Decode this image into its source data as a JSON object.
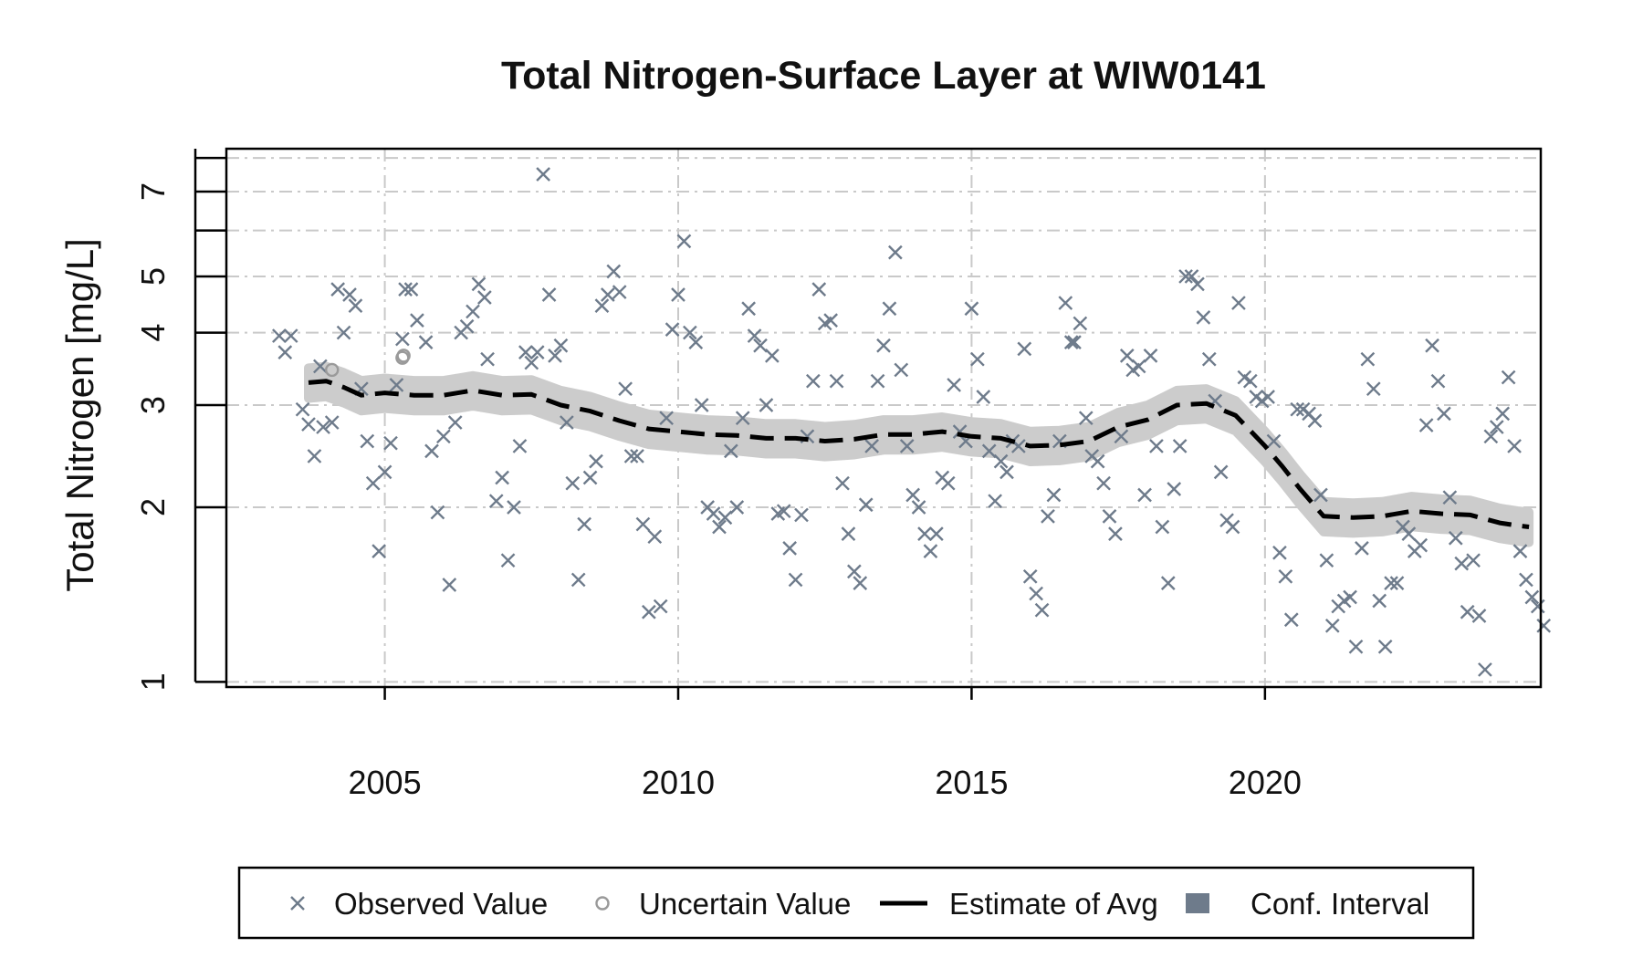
{
  "chart_data": {
    "type": "scatter",
    "title": "Total Nitrogen-Surface Layer at WIW0141",
    "ylabel": "Total Nitrogen [mg/L]",
    "xlabel": "",
    "y_scale": "log",
    "xlim": [
      2002.3,
      2024.7
    ],
    "ylim": [
      0.98,
      8.3
    ],
    "x_ticks": [
      2005,
      2010,
      2015,
      2020
    ],
    "x_tick_labels": [
      "2005",
      "2010",
      "2015",
      "2020"
    ],
    "y_ticks": [
      1,
      2,
      3,
      4,
      5,
      7
    ],
    "y_tick_labels": [
      "1",
      "2",
      "3",
      "4",
      "5",
      "7"
    ],
    "y_minor_ticks": [
      6,
      8
    ],
    "grid": true,
    "colors": {
      "observed": "#6e7b8b",
      "uncertain": "#9a9a9a",
      "estimate": "#000000",
      "conf_band": "#cccccc",
      "conf_legend": "#6e7b8b",
      "grid": "#c9c9c9"
    },
    "legend": {
      "placement": "bottom",
      "items": [
        {
          "label": "Observed Value",
          "symbol": "x"
        },
        {
          "label": "Uncertain Value",
          "symbol": "circle"
        },
        {
          "label": "Estimate of Avg",
          "symbol": "dashed-line"
        },
        {
          "label": "Conf. Interval",
          "symbol": "square"
        }
      ]
    },
    "series": [
      {
        "name": "Observed Value",
        "points": [
          [
            2003.2,
            3.95
          ],
          [
            2003.3,
            3.7
          ],
          [
            2003.4,
            3.95
          ],
          [
            2003.6,
            2.95
          ],
          [
            2003.7,
            2.78
          ],
          [
            2003.8,
            2.45
          ],
          [
            2003.9,
            3.5
          ],
          [
            2003.95,
            2.75
          ],
          [
            2004.1,
            2.8
          ],
          [
            2004.2,
            4.75
          ],
          [
            2004.3,
            4.0
          ],
          [
            2004.4,
            4.65
          ],
          [
            2004.5,
            4.45
          ],
          [
            2004.6,
            3.2
          ],
          [
            2004.7,
            2.6
          ],
          [
            2004.8,
            2.2
          ],
          [
            2004.9,
            1.68
          ],
          [
            2005.0,
            2.3
          ],
          [
            2005.1,
            2.58
          ],
          [
            2005.2,
            3.25
          ],
          [
            2005.3,
            3.9
          ],
          [
            2005.35,
            4.75
          ],
          [
            2005.45,
            4.75
          ],
          [
            2005.55,
            4.2
          ],
          [
            2005.7,
            3.85
          ],
          [
            2005.8,
            2.5
          ],
          [
            2005.9,
            1.96
          ],
          [
            2006.0,
            2.65
          ],
          [
            2006.1,
            1.47
          ],
          [
            2006.2,
            2.8
          ],
          [
            2006.3,
            4.0
          ],
          [
            2006.4,
            4.1
          ],
          [
            2006.5,
            4.35
          ],
          [
            2006.6,
            4.85
          ],
          [
            2006.7,
            4.6
          ],
          [
            2006.75,
            3.6
          ],
          [
            2006.9,
            2.05
          ],
          [
            2007.0,
            2.25
          ],
          [
            2007.1,
            1.62
          ],
          [
            2007.2,
            2.0
          ],
          [
            2007.3,
            2.55
          ],
          [
            2007.4,
            3.7
          ],
          [
            2007.5,
            3.55
          ],
          [
            2007.6,
            3.7
          ],
          [
            2007.7,
            7.5
          ],
          [
            2007.8,
            4.65
          ],
          [
            2007.9,
            3.65
          ],
          [
            2008.0,
            3.8
          ],
          [
            2008.1,
            2.8
          ],
          [
            2008.2,
            2.2
          ],
          [
            2008.3,
            1.5
          ],
          [
            2008.4,
            1.87
          ],
          [
            2008.5,
            2.25
          ],
          [
            2008.6,
            2.4
          ],
          [
            2008.7,
            4.45
          ],
          [
            2008.8,
            4.65
          ],
          [
            2008.9,
            5.1
          ],
          [
            2009.0,
            4.7
          ],
          [
            2009.1,
            3.2
          ],
          [
            2009.2,
            2.45
          ],
          [
            2009.3,
            2.45
          ],
          [
            2009.4,
            1.87
          ],
          [
            2009.5,
            1.32
          ],
          [
            2009.6,
            1.78
          ],
          [
            2009.7,
            1.35
          ],
          [
            2009.8,
            2.85
          ],
          [
            2009.9,
            4.05
          ],
          [
            2010.0,
            4.65
          ],
          [
            2010.1,
            5.75
          ],
          [
            2010.2,
            4.0
          ],
          [
            2010.3,
            3.85
          ],
          [
            2010.4,
            3.0
          ],
          [
            2010.5,
            2.0
          ],
          [
            2010.6,
            1.95
          ],
          [
            2010.7,
            1.85
          ],
          [
            2010.8,
            1.92
          ],
          [
            2010.9,
            2.5
          ],
          [
            2011.0,
            2.0
          ],
          [
            2011.1,
            2.85
          ],
          [
            2011.2,
            4.4
          ],
          [
            2011.3,
            3.95
          ],
          [
            2011.4,
            3.8
          ],
          [
            2011.5,
            3.0
          ],
          [
            2011.6,
            3.65
          ],
          [
            2011.7,
            1.95
          ],
          [
            2011.8,
            1.97
          ],
          [
            2011.9,
            1.7
          ],
          [
            2012.0,
            1.5
          ],
          [
            2012.1,
            1.94
          ],
          [
            2012.2,
            2.65
          ],
          [
            2012.3,
            3.3
          ],
          [
            2012.4,
            4.75
          ],
          [
            2012.5,
            4.15
          ],
          [
            2012.6,
            4.2
          ],
          [
            2012.7,
            3.3
          ],
          [
            2012.8,
            2.2
          ],
          [
            2012.9,
            1.8
          ],
          [
            2013.0,
            1.55
          ],
          [
            2013.1,
            1.48
          ],
          [
            2013.2,
            2.02
          ],
          [
            2013.3,
            2.55
          ],
          [
            2013.4,
            3.3
          ],
          [
            2013.5,
            3.8
          ],
          [
            2013.6,
            4.4
          ],
          [
            2013.7,
            5.5
          ],
          [
            2013.8,
            3.45
          ],
          [
            2013.9,
            2.55
          ],
          [
            2014.0,
            2.1
          ],
          [
            2014.1,
            2.0
          ],
          [
            2014.2,
            1.8
          ],
          [
            2014.3,
            1.68
          ],
          [
            2014.4,
            1.8
          ],
          [
            2014.5,
            2.25
          ],
          [
            2014.6,
            2.2
          ],
          [
            2014.7,
            3.25
          ],
          [
            2014.8,
            2.7
          ],
          [
            2014.9,
            2.6
          ],
          [
            2015.0,
            4.4
          ],
          [
            2015.1,
            3.6
          ],
          [
            2015.2,
            3.1
          ],
          [
            2015.3,
            2.5
          ],
          [
            2015.4,
            2.05
          ],
          [
            2015.5,
            2.4
          ],
          [
            2015.6,
            2.3
          ],
          [
            2015.7,
            2.6
          ],
          [
            2015.8,
            2.55
          ],
          [
            2015.9,
            3.75
          ],
          [
            2016.0,
            1.52
          ],
          [
            2016.1,
            1.42
          ],
          [
            2016.2,
            1.33
          ],
          [
            2016.3,
            1.93
          ],
          [
            2016.4,
            2.1
          ],
          [
            2016.5,
            2.6
          ],
          [
            2016.6,
            4.5
          ],
          [
            2016.7,
            3.85
          ],
          [
            2016.75,
            3.85
          ],
          [
            2016.85,
            4.15
          ],
          [
            2016.95,
            2.85
          ],
          [
            2017.05,
            2.45
          ],
          [
            2017.15,
            2.4
          ],
          [
            2017.25,
            2.2
          ],
          [
            2017.35,
            1.93
          ],
          [
            2017.45,
            1.8
          ],
          [
            2017.55,
            2.65
          ],
          [
            2017.65,
            3.65
          ],
          [
            2017.75,
            3.45
          ],
          [
            2017.85,
            3.5
          ],
          [
            2017.95,
            2.1
          ],
          [
            2018.05,
            3.65
          ],
          [
            2018.15,
            2.55
          ],
          [
            2018.25,
            1.85
          ],
          [
            2018.35,
            1.48
          ],
          [
            2018.45,
            2.15
          ],
          [
            2018.55,
            2.55
          ],
          [
            2018.65,
            5.0
          ],
          [
            2018.75,
            5.0
          ],
          [
            2018.85,
            4.85
          ],
          [
            2018.95,
            4.25
          ],
          [
            2019.05,
            3.6
          ],
          [
            2019.15,
            3.05
          ],
          [
            2019.25,
            2.3
          ],
          [
            2019.35,
            1.9
          ],
          [
            2019.45,
            1.85
          ],
          [
            2019.55,
            4.5
          ],
          [
            2019.65,
            3.35
          ],
          [
            2019.75,
            3.3
          ],
          [
            2019.85,
            3.1
          ],
          [
            2019.95,
            3.05
          ],
          [
            2020.05,
            3.1
          ],
          [
            2020.15,
            2.6
          ],
          [
            2020.25,
            1.67
          ],
          [
            2020.35,
            1.52
          ],
          [
            2020.45,
            1.28
          ],
          [
            2020.55,
            2.95
          ],
          [
            2020.65,
            2.95
          ],
          [
            2020.75,
            2.9
          ],
          [
            2020.85,
            2.82
          ],
          [
            2020.95,
            2.1
          ],
          [
            2021.05,
            1.62
          ],
          [
            2021.15,
            1.25
          ],
          [
            2021.25,
            1.35
          ],
          [
            2021.35,
            1.38
          ],
          [
            2021.45,
            1.4
          ],
          [
            2021.55,
            1.15
          ],
          [
            2021.65,
            1.7
          ],
          [
            2021.75,
            3.6
          ],
          [
            2021.85,
            3.2
          ],
          [
            2021.95,
            1.38
          ],
          [
            2022.05,
            1.15
          ],
          [
            2022.15,
            1.48
          ],
          [
            2022.25,
            1.48
          ],
          [
            2022.35,
            1.85
          ],
          [
            2022.45,
            1.8
          ],
          [
            2022.55,
            1.68
          ],
          [
            2022.65,
            1.72
          ],
          [
            2022.75,
            2.77
          ],
          [
            2022.85,
            3.8
          ],
          [
            2022.95,
            3.3
          ],
          [
            2023.05,
            2.9
          ],
          [
            2023.15,
            2.08
          ],
          [
            2023.25,
            1.77
          ],
          [
            2023.35,
            1.6
          ],
          [
            2023.45,
            1.32
          ],
          [
            2023.55,
            1.62
          ],
          [
            2023.65,
            1.3
          ],
          [
            2023.75,
            1.05
          ],
          [
            2023.85,
            2.65
          ],
          [
            2023.95,
            2.75
          ],
          [
            2024.05,
            2.9
          ],
          [
            2024.15,
            3.35
          ],
          [
            2024.25,
            2.55
          ],
          [
            2024.35,
            1.68
          ],
          [
            2024.45,
            1.5
          ],
          [
            2024.55,
            1.4
          ],
          [
            2024.65,
            1.35
          ],
          [
            2024.75,
            1.25
          ]
        ]
      },
      {
        "name": "Uncertain Value",
        "points": [
          [
            2004.1,
            3.45
          ],
          [
            2005.3,
            3.62
          ],
          [
            2005.32,
            3.65
          ]
        ]
      },
      {
        "name": "Estimate of Avg",
        "points": [
          [
            2003.7,
            3.28
          ],
          [
            2004.0,
            3.3
          ],
          [
            2004.3,
            3.22
          ],
          [
            2004.6,
            3.12
          ],
          [
            2005.0,
            3.15
          ],
          [
            2005.5,
            3.12
          ],
          [
            2006.0,
            3.12
          ],
          [
            2006.5,
            3.18
          ],
          [
            2007.0,
            3.12
          ],
          [
            2007.5,
            3.13
          ],
          [
            2008.0,
            3.0
          ],
          [
            2008.5,
            2.93
          ],
          [
            2009.0,
            2.82
          ],
          [
            2009.5,
            2.73
          ],
          [
            2010.0,
            2.7
          ],
          [
            2010.5,
            2.67
          ],
          [
            2011.0,
            2.66
          ],
          [
            2011.5,
            2.63
          ],
          [
            2012.0,
            2.63
          ],
          [
            2012.5,
            2.6
          ],
          [
            2013.0,
            2.62
          ],
          [
            2013.5,
            2.67
          ],
          [
            2014.0,
            2.67
          ],
          [
            2014.5,
            2.7
          ],
          [
            2015.0,
            2.65
          ],
          [
            2015.5,
            2.63
          ],
          [
            2016.0,
            2.55
          ],
          [
            2016.5,
            2.56
          ],
          [
            2017.0,
            2.6
          ],
          [
            2017.5,
            2.75
          ],
          [
            2018.0,
            2.83
          ],
          [
            2018.5,
            3.0
          ],
          [
            2019.0,
            3.02
          ],
          [
            2019.5,
            2.88
          ],
          [
            2020.0,
            2.55
          ],
          [
            2020.3,
            2.35
          ],
          [
            2020.6,
            2.15
          ],
          [
            2021.0,
            1.93
          ],
          [
            2021.5,
            1.92
          ],
          [
            2022.0,
            1.93
          ],
          [
            2022.5,
            1.97
          ],
          [
            2023.0,
            1.95
          ],
          [
            2023.5,
            1.94
          ],
          [
            2024.0,
            1.88
          ],
          [
            2024.3,
            1.86
          ],
          [
            2024.5,
            1.85
          ]
        ]
      }
    ],
    "conf_interval_halfwidth_fraction": 0.06
  }
}
